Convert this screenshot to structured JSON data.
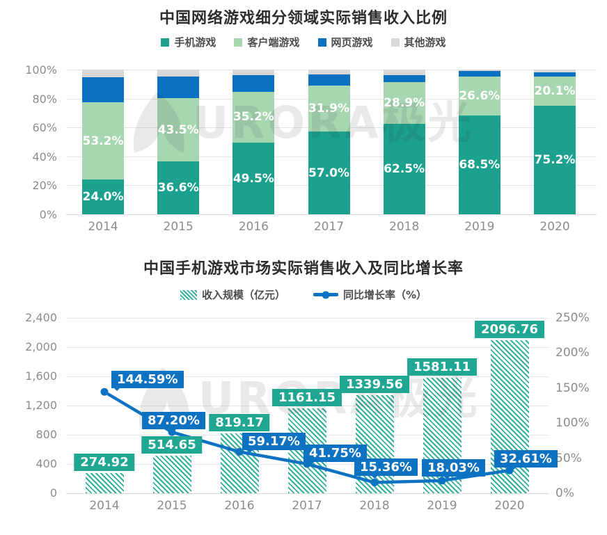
{
  "watermark": {
    "brand_text": "URORA极光"
  },
  "chart_data": [
    {
      "type": "bar",
      "stacked": true,
      "percent_stack": true,
      "title": "中国网络游戏细分领域实际销售收入比例",
      "categories": [
        "2014",
        "2015",
        "2016",
        "2017",
        "2018",
        "2019",
        "2020"
      ],
      "series": [
        {
          "name": "手机游戏",
          "color": "#1ba18e",
          "values": [
            24.0,
            36.6,
            49.5,
            57.0,
            62.5,
            68.5,
            75.2
          ],
          "labels": [
            "24.0%",
            "36.6%",
            "49.5%",
            "57.0%",
            "62.5%",
            "68.5%",
            "75.2%"
          ],
          "show_labels": true
        },
        {
          "name": "客户端游戏",
          "color": "#a6d7b0",
          "values": [
            53.2,
            43.5,
            35.2,
            31.9,
            28.9,
            26.6,
            20.1
          ],
          "labels": [
            "53.2%",
            "43.5%",
            "35.2%",
            "31.9%",
            "28.9%",
            "26.6%",
            "20.1%"
          ],
          "show_labels": true
        },
        {
          "name": "网页游戏",
          "color": "#0a70c2",
          "values": [
            17.7,
            15.1,
            11.3,
            7.6,
            4.6,
            4.0,
            3.0
          ],
          "show_labels": false
        },
        {
          "name": "其他游戏",
          "color": "#d8d8d8",
          "values": [
            5.1,
            4.8,
            4.0,
            3.5,
            4.0,
            0.9,
            1.7
          ],
          "show_labels": false
        }
      ],
      "ylim": [
        0,
        100
      ],
      "yticks": [
        {
          "v": 0,
          "label": "0%"
        },
        {
          "v": 20,
          "label": "20%"
        },
        {
          "v": 40,
          "label": "40%"
        },
        {
          "v": 60,
          "label": "60%"
        },
        {
          "v": 80,
          "label": "80%"
        },
        {
          "v": 100,
          "label": "100%"
        }
      ],
      "grid": true,
      "legend_position": "top"
    },
    {
      "type": "combo-bar-line",
      "title": "中国手机游戏市场实际销售收入及同比增长率",
      "categories": [
        "2014",
        "2015",
        "2016",
        "2017",
        "2018",
        "2019",
        "2020"
      ],
      "bar_series": {
        "name": "收入规模（亿元）",
        "color": "#1fa793",
        "hatched": true,
        "values": [
          274.92,
          514.65,
          819.17,
          1161.15,
          1339.56,
          1581.11,
          2096.76
        ],
        "labels": [
          "274.92",
          "514.65",
          "819.17",
          "1161.15",
          "1339.56",
          "1581.11",
          "2096.76"
        ]
      },
      "line_series": {
        "name": "同比增长率（%）",
        "color": "#0d72c2",
        "values": [
          144.59,
          87.2,
          59.17,
          41.75,
          15.36,
          18.03,
          32.61
        ],
        "labels": [
          "144.59%",
          "87.20%",
          "59.17%",
          "41.75%",
          "15.36%",
          "18.03%",
          "32.61%"
        ]
      },
      "left_axis": {
        "lim": [
          0,
          2400
        ],
        "ticks": [
          {
            "v": 0,
            "label": "0"
          },
          {
            "v": 400,
            "label": "400"
          },
          {
            "v": 800,
            "label": "800"
          },
          {
            "v": 1200,
            "label": "1,200"
          },
          {
            "v": 1600,
            "label": "1,600"
          },
          {
            "v": 2000,
            "label": "2,000"
          },
          {
            "v": 2400,
            "label": "2,400"
          }
        ]
      },
      "right_axis": {
        "lim": [
          0,
          250
        ],
        "ticks": [
          {
            "v": 0,
            "label": "0%"
          },
          {
            "v": 50,
            "label": "50%"
          },
          {
            "v": 100,
            "label": "100%"
          },
          {
            "v": 150,
            "label": "150%"
          },
          {
            "v": 200,
            "label": "200%"
          },
          {
            "v": 250,
            "label": "250%"
          }
        ]
      },
      "grid": true,
      "legend_position": "top"
    }
  ]
}
